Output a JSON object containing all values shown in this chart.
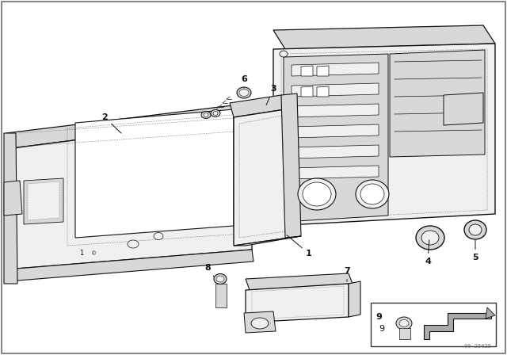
{
  "bg_color": "#ffffff",
  "border_color": "#000000",
  "watermark": "00 25025",
  "fig_width": 6.4,
  "fig_height": 4.48,
  "line_color": "#111111",
  "dotted_color": "#555555",
  "fill_white": "#ffffff",
  "fill_light": "#f0f0f0",
  "fill_mid": "#d8d8d8",
  "fill_dark": "#aaaaaa"
}
